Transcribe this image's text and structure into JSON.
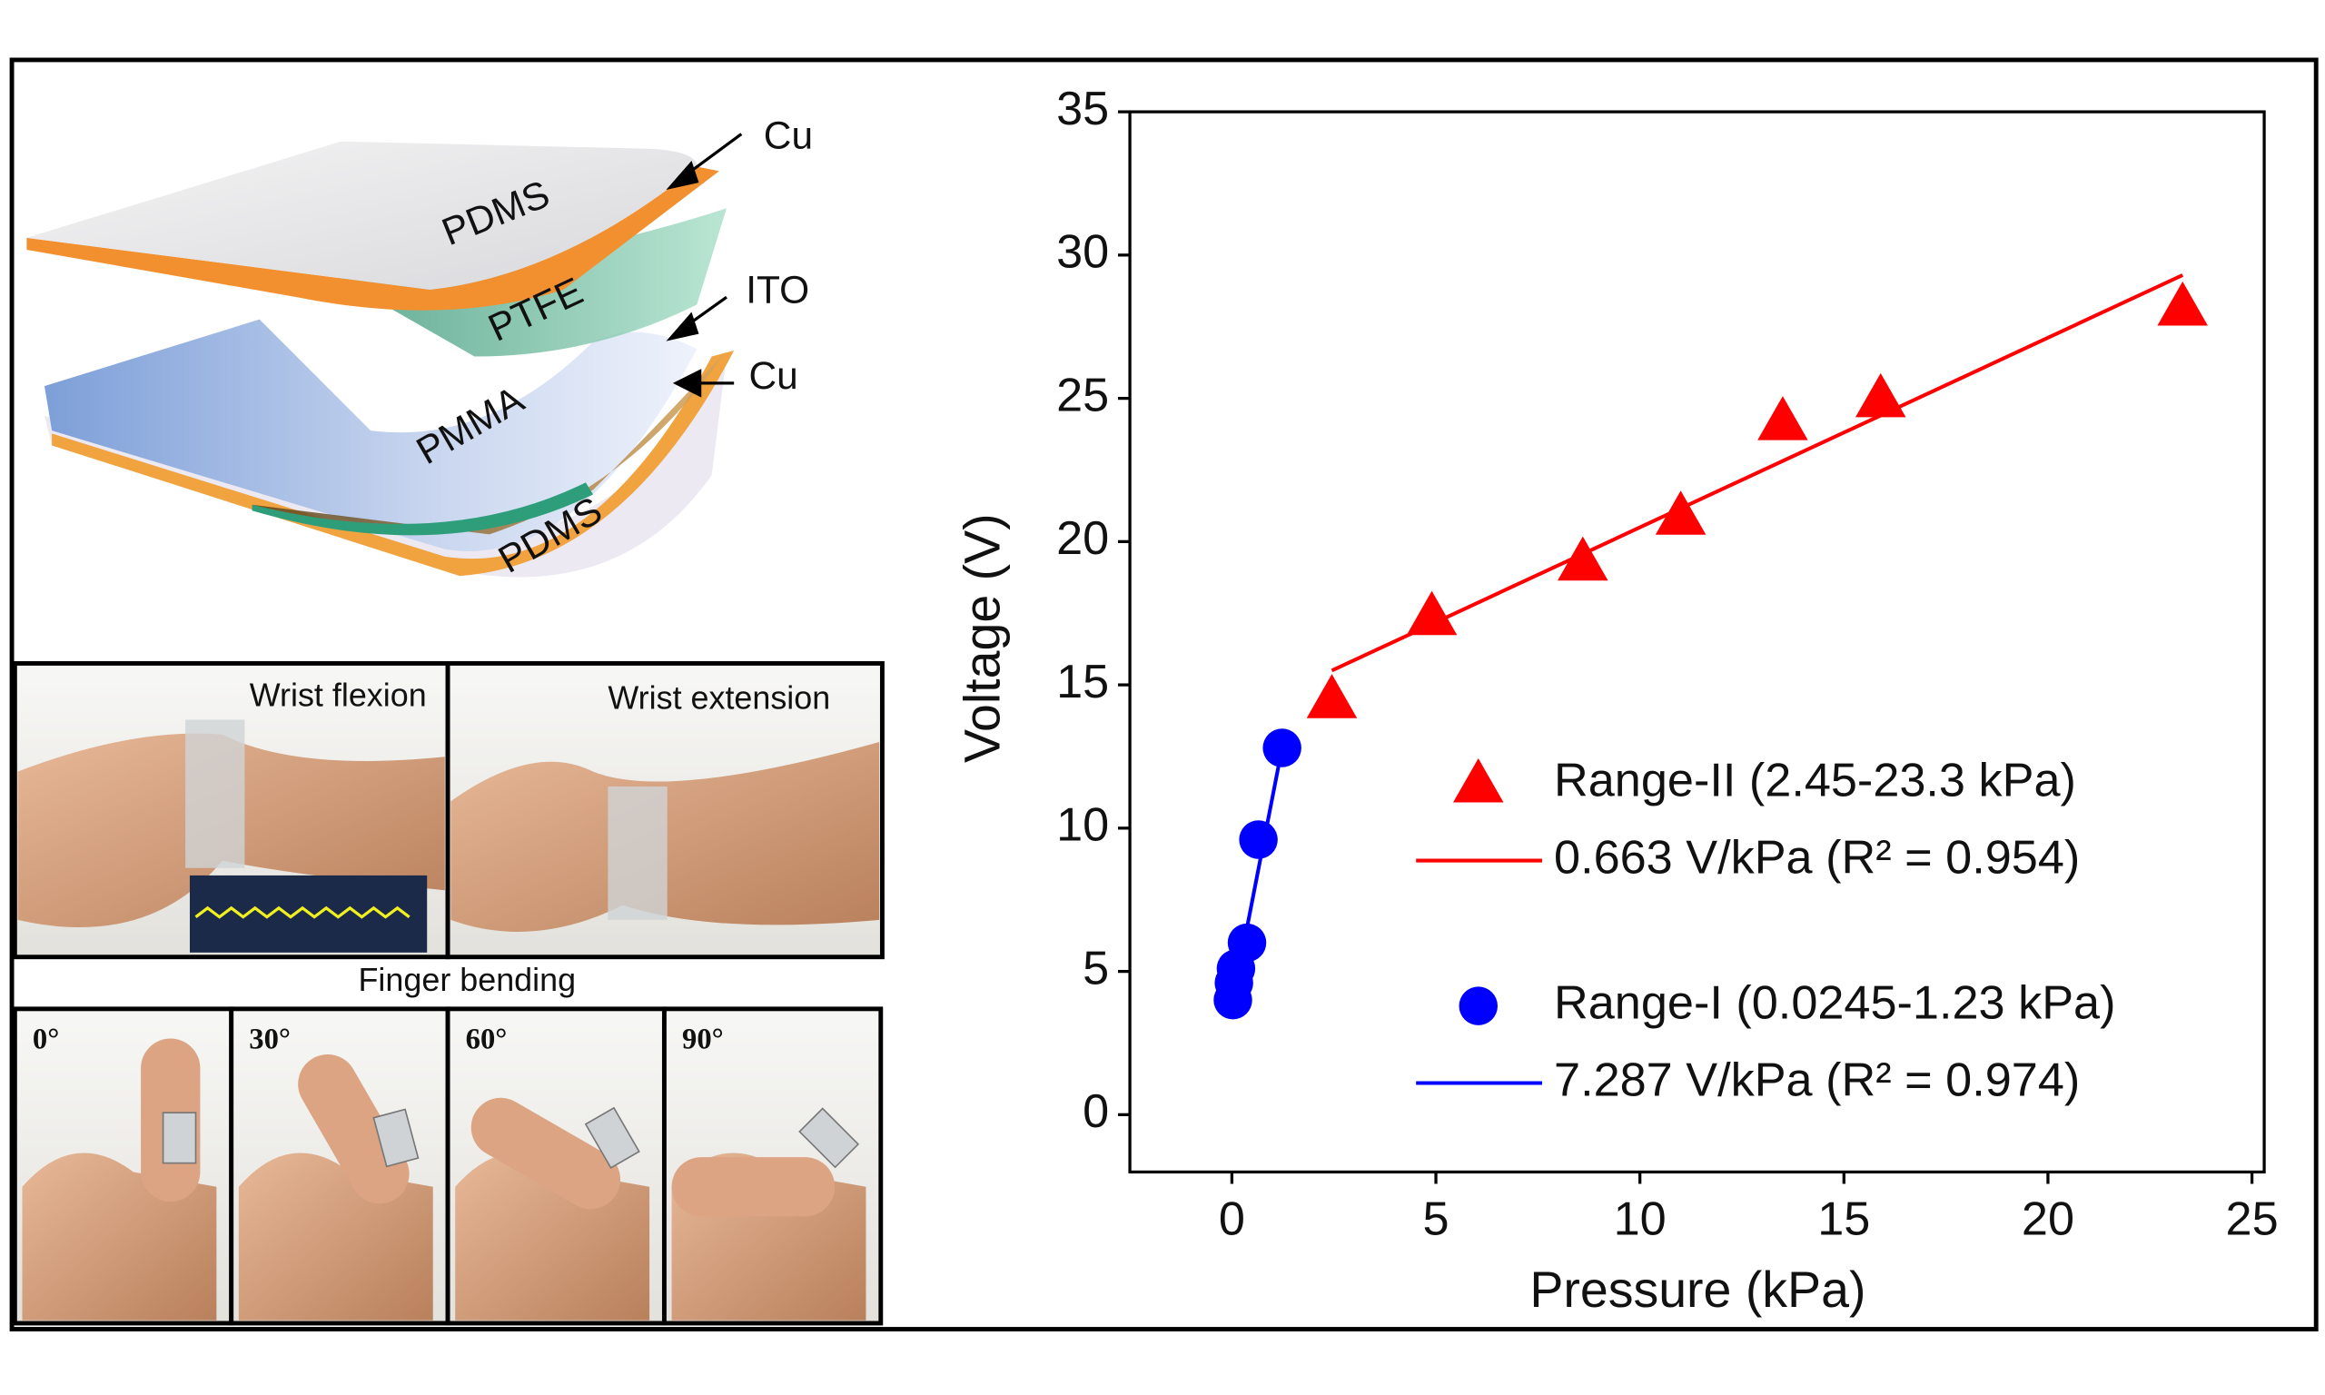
{
  "diagram": {
    "labels": [
      "Cu",
      "PDMS",
      "PTFE",
      "ITO",
      "Cu",
      "PMMA",
      "PDMS"
    ]
  },
  "photos": {
    "wrist": [
      "Wrist flexion",
      "Wrist extension"
    ],
    "finger_title": "Finger bending",
    "finger": [
      "0°",
      "30°",
      "60°",
      "90°"
    ]
  },
  "chart_data": {
    "type": "scatter",
    "xlabel": "Pressure (kPa)",
    "ylabel": "Voltage (V)",
    "xlim": [
      -2.5,
      25.3
    ],
    "ylim": [
      -2,
      35
    ],
    "xticks": [
      0,
      5,
      10,
      15,
      20,
      25
    ],
    "yticks": [
      0,
      5,
      10,
      15,
      20,
      25,
      30,
      35
    ],
    "series": [
      {
        "name": "Range-II (2.45-23.3 kPa)",
        "color": "#ff0000",
        "marker": "triangle",
        "x": [
          2.45,
          4.9,
          8.6,
          11.0,
          13.5,
          15.9,
          23.3
        ],
        "values": [
          14.5,
          17.4,
          19.3,
          20.9,
          24.2,
          25.0,
          28.2
        ]
      },
      {
        "name": "Range-I (0.0245-1.23 kPa)",
        "color": "#0000ff",
        "marker": "circle",
        "x": [
          0.0245,
          0.05,
          0.1,
          0.37,
          0.65,
          1.23
        ],
        "values": [
          4.0,
          4.6,
          5.1,
          6.0,
          9.6,
          12.8
        ]
      }
    ],
    "fits": [
      {
        "name": "0.663 V/kPa (R² = 0.954)",
        "color": "#ff0000",
        "x": [
          2.45,
          23.3
        ],
        "values": [
          15.5,
          29.3
        ]
      },
      {
        "name": "7.287 V/kPa (R² = 0.974)",
        "color": "#0000ff",
        "x": [
          0.0245,
          1.23
        ],
        "values": [
          4.0,
          12.8
        ]
      }
    ]
  }
}
